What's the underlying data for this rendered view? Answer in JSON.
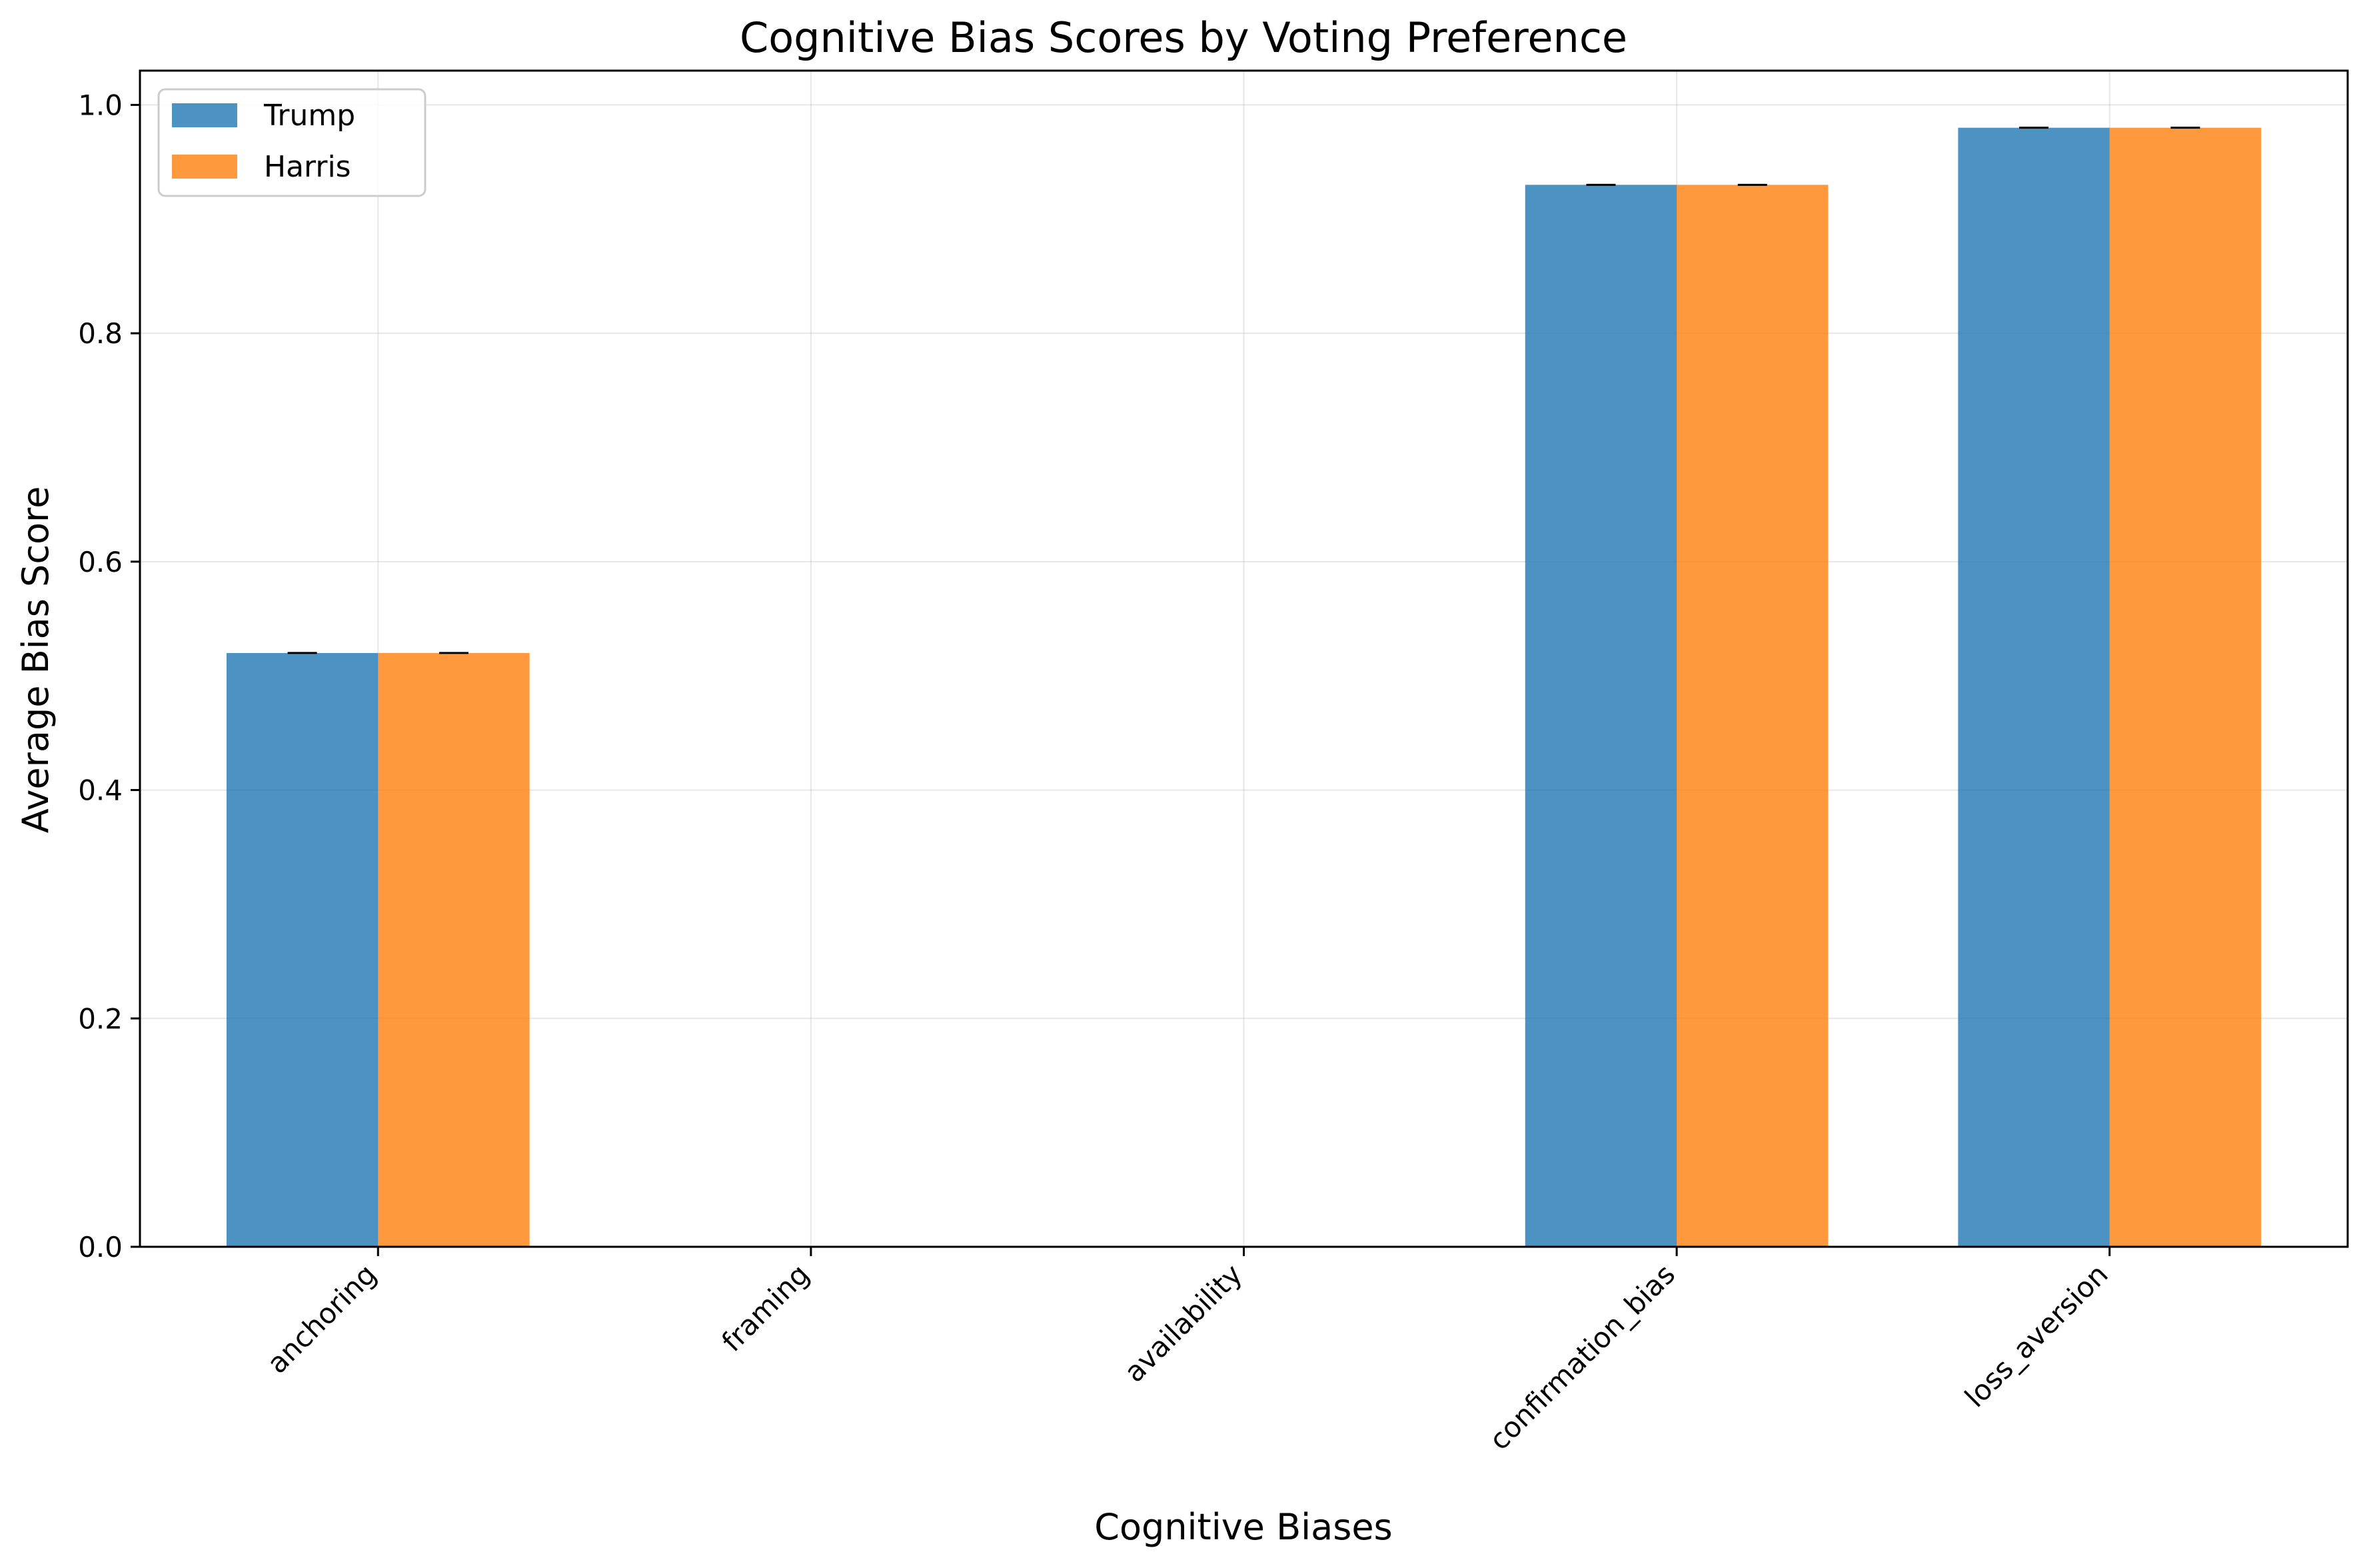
{
  "chart_data": {
    "type": "bar",
    "title": "Cognitive Bias Scores by Voting Preference",
    "xlabel": "Cognitive Biases",
    "ylabel": "Average Bias Score",
    "categories": [
      "anchoring",
      "framing",
      "availability",
      "confirmation_bias",
      "loss_aversion"
    ],
    "series": [
      {
        "name": "Trump",
        "color": "#1f77b4",
        "values": [
          0.52,
          0.0,
          0.0,
          0.93,
          0.98
        ]
      },
      {
        "name": "Harris",
        "color": "#ff7f0e",
        "values": [
          0.52,
          0.0,
          0.0,
          0.93,
          0.98
        ]
      }
    ],
    "ylim": [
      0,
      1.03
    ],
    "yticks": [
      0.0,
      0.2,
      0.4,
      0.6,
      0.8,
      1.0
    ],
    "ytick_labels": [
      "0.0",
      "0.2",
      "0.4",
      "0.6",
      "0.8",
      "1.0"
    ],
    "grid": true,
    "legend_position": "top-left",
    "error_bars": true
  }
}
